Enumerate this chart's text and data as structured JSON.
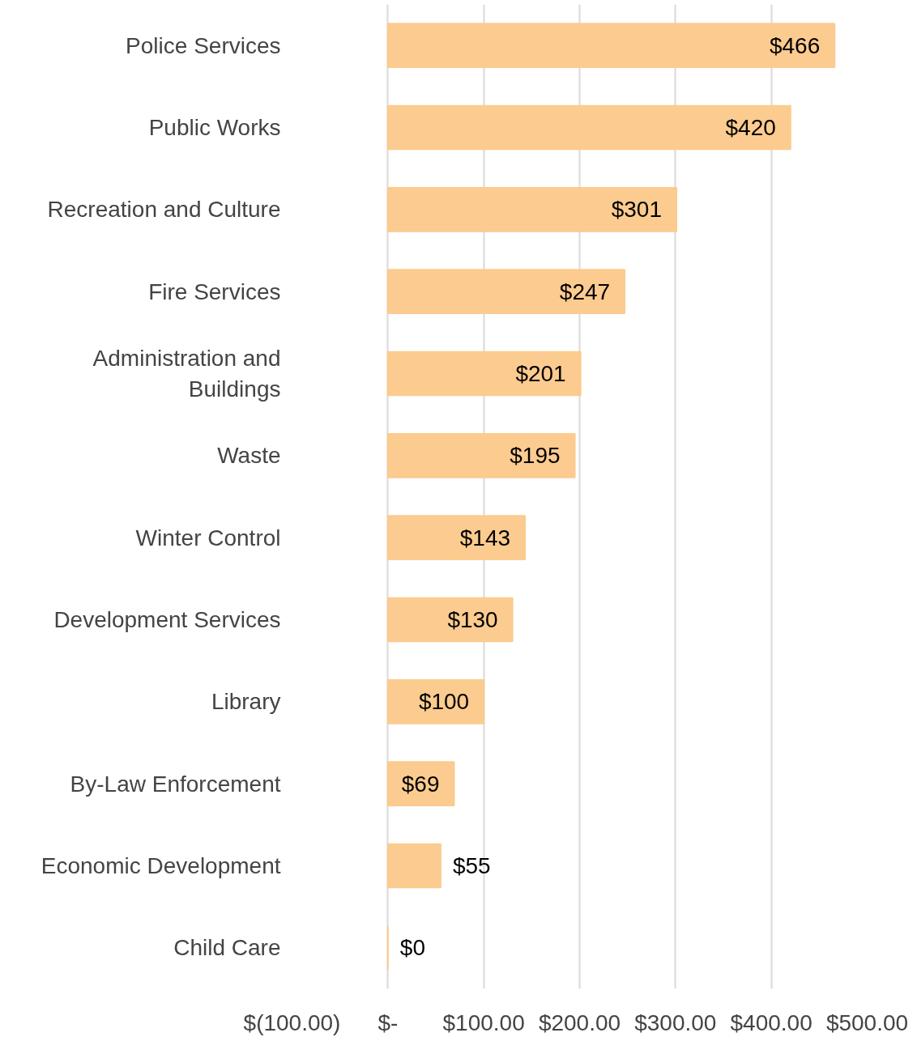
{
  "chart_data": {
    "type": "bar",
    "orientation": "horizontal",
    "categories": [
      "Police Services",
      "Public Works",
      "Recreation and Culture",
      "Fire Services",
      "Administration and Buildings",
      "Waste",
      "Winter Control",
      "Development Services",
      "Library",
      "By-Law Enforcement",
      "Economic Development",
      "Child Care"
    ],
    "values": [
      466,
      420,
      301,
      247,
      201,
      195,
      143,
      130,
      100,
      69,
      55,
      0
    ],
    "value_labels": [
      "$466",
      "$420",
      "$301",
      "$247",
      "$201",
      "$195",
      "$143",
      "$130",
      "$100",
      "$69",
      "$55",
      "$0"
    ],
    "color": "#fccb8f",
    "xlim": [
      -100,
      500
    ],
    "xticks": [
      {
        "value": -100,
        "label": "$(100.00)"
      },
      {
        "value": 0,
        "label": "$-"
      },
      {
        "value": 100,
        "label": "$100.00"
      },
      {
        "value": 200,
        "label": "$200.00"
      },
      {
        "value": 300,
        "label": "$300.00"
      },
      {
        "value": 400,
        "label": "$400.00"
      },
      {
        "value": 500,
        "label": "$500.00"
      }
    ],
    "grid": "x"
  }
}
